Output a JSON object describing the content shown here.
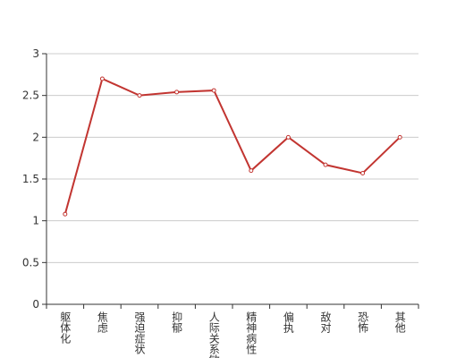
{
  "chart_data": {
    "type": "line",
    "categories": [
      "躯体化",
      "焦虑",
      "强迫症状",
      "抑郁",
      "人际关系敏感",
      "精神病性",
      "偏执",
      "敌对",
      "恐怖",
      "其他"
    ],
    "values": [
      1.08,
      2.7,
      2.5,
      2.54,
      2.56,
      1.6,
      2.0,
      1.67,
      1.57,
      2.0
    ],
    "color": "#c23531",
    "ylim": [
      0,
      3
    ],
    "yticks": [
      0,
      0.5,
      1,
      1.5,
      2,
      2.5,
      3
    ],
    "grid": true
  }
}
